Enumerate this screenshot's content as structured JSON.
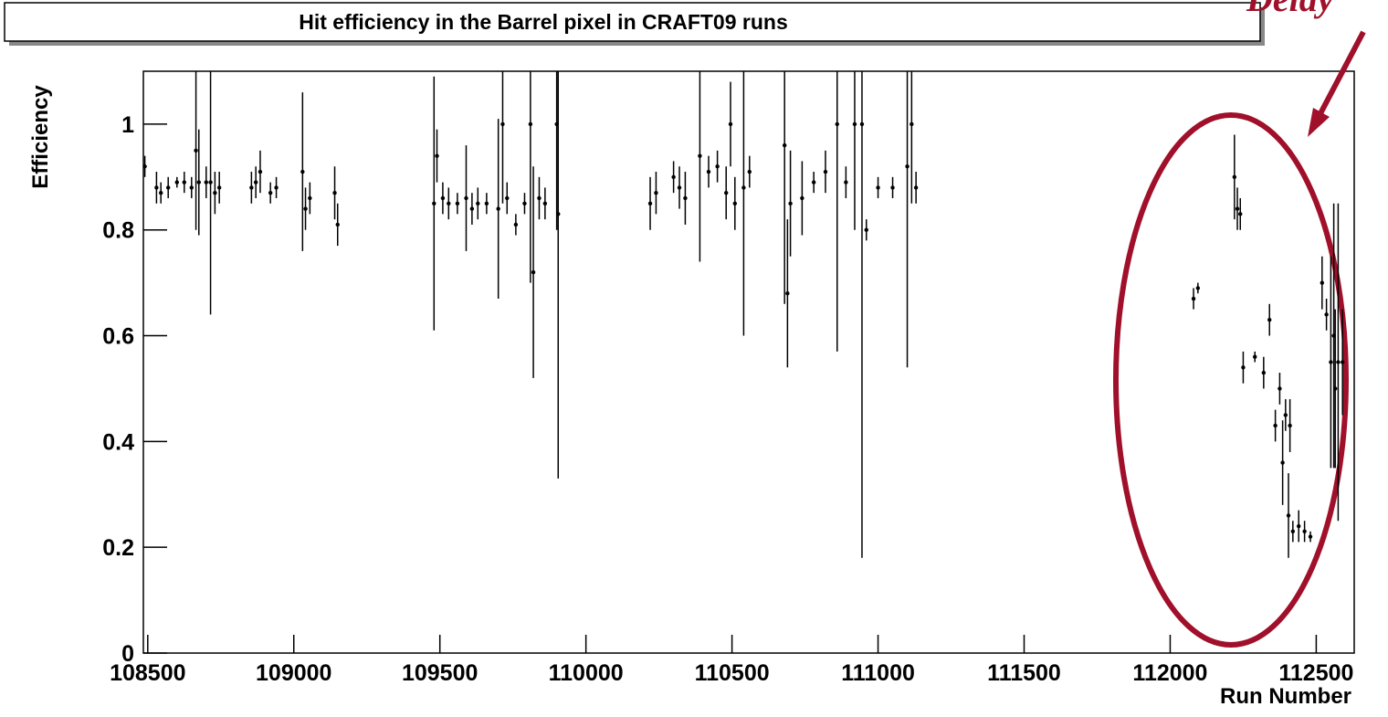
{
  "chart_data": {
    "type": "scatter",
    "title": "Hit efficiency in the Barrel pixel in CRAFT09 runs",
    "x_label": "Run Number",
    "y_label": "Efficiency",
    "annotation": "Delay",
    "xlim": [
      108485,
      112630
    ],
    "ylim": [
      0,
      1.1
    ],
    "xticks": [
      108500,
      109000,
      109500,
      110000,
      110500,
      111000,
      111500,
      112000,
      112500
    ],
    "yticks": [
      0,
      0.2,
      0.4,
      0.6,
      0.8,
      1
    ],
    "color": "#000000",
    "x": [
      108490,
      108530,
      108545,
      108570,
      108600,
      108625,
      108650,
      108665,
      108675,
      108700,
      108715,
      108730,
      108745,
      108855,
      108870,
      108885,
      108920,
      108940,
      109030,
      109040,
      109055,
      109140,
      109150,
      109480,
      109490,
      109510,
      109530,
      109560,
      109590,
      109610,
      109630,
      109660,
      109700,
      109715,
      109730,
      109760,
      109790,
      109810,
      109820,
      109840,
      109860,
      109900,
      109905,
      110220,
      110240,
      110300,
      110320,
      110340,
      110390,
      110420,
      110450,
      110480,
      110495,
      110510,
      110540,
      110560,
      110680,
      110690,
      110700,
      110740,
      110780,
      110820,
      110860,
      110890,
      110920,
      110945,
      110960,
      111000,
      111050,
      111100,
      111115,
      111130,
      112080,
      112095,
      112220,
      112230,
      112240,
      112250,
      112290,
      112320,
      112340,
      112360,
      112375,
      112385,
      112395,
      112405,
      112410,
      112420,
      112440,
      112460,
      112480,
      112520,
      112535,
      112550,
      112560,
      112565,
      112575,
      112590
    ],
    "values": [
      0.92,
      0.88,
      0.87,
      0.88,
      0.89,
      0.89,
      0.88,
      0.95,
      0.89,
      0.89,
      0.89,
      0.87,
      0.88,
      0.88,
      0.89,
      0.91,
      0.87,
      0.88,
      0.91,
      0.84,
      0.86,
      0.87,
      0.81,
      0.85,
      0.94,
      0.86,
      0.85,
      0.85,
      0.86,
      0.84,
      0.85,
      0.85,
      0.84,
      1.0,
      0.86,
      0.81,
      0.85,
      1.0,
      0.72,
      0.86,
      0.85,
      1.0,
      0.83,
      0.85,
      0.87,
      0.9,
      0.88,
      0.86,
      0.94,
      0.91,
      0.92,
      0.87,
      1.0,
      0.85,
      0.88,
      0.91,
      0.96,
      0.68,
      0.85,
      0.86,
      0.89,
      0.91,
      1.0,
      0.89,
      1.0,
      1.0,
      0.8,
      0.88,
      0.88,
      0.92,
      1.0,
      0.88,
      0.67,
      0.69,
      0.9,
      0.84,
      0.83,
      0.54,
      0.56,
      0.53,
      0.63,
      0.43,
      0.5,
      0.36,
      0.45,
      0.26,
      0.43,
      0.23,
      0.24,
      0.23,
      0.22,
      0.7,
      0.64,
      0.55,
      0.6,
      0.5,
      0.55,
      0.55
    ],
    "errors": [
      0.02,
      0.03,
      0.02,
      0.02,
      0.01,
      0.02,
      0.02,
      0.15,
      0.1,
      0.03,
      0.25,
      0.04,
      0.03,
      0.03,
      0.03,
      0.04,
      0.02,
      0.02,
      0.15,
      0.04,
      0.03,
      0.05,
      0.04,
      0.24,
      0.05,
      0.03,
      0.03,
      0.02,
      0.1,
      0.03,
      0.03,
      0.02,
      0.17,
      0.15,
      0.03,
      0.02,
      0.02,
      0.3,
      0.2,
      0.04,
      0.03,
      0.2,
      0.5,
      0.05,
      0.04,
      0.03,
      0.04,
      0.05,
      0.2,
      0.03,
      0.03,
      0.05,
      0.08,
      0.05,
      0.28,
      0.03,
      0.3,
      0.14,
      0.1,
      0.07,
      0.02,
      0.04,
      0.43,
      0.03,
      0.2,
      0.82,
      0.02,
      0.02,
      0.02,
      0.38,
      0.15,
      0.03,
      0.02,
      0.01,
      0.08,
      0.04,
      0.03,
      0.03,
      0.01,
      0.03,
      0.03,
      0.03,
      0.03,
      0.08,
      0.03,
      0.08,
      0.05,
      0.02,
      0.03,
      0.02,
      0.01,
      0.05,
      0.03,
      0.2,
      0.25,
      0.15,
      0.3,
      0.1
    ]
  }
}
